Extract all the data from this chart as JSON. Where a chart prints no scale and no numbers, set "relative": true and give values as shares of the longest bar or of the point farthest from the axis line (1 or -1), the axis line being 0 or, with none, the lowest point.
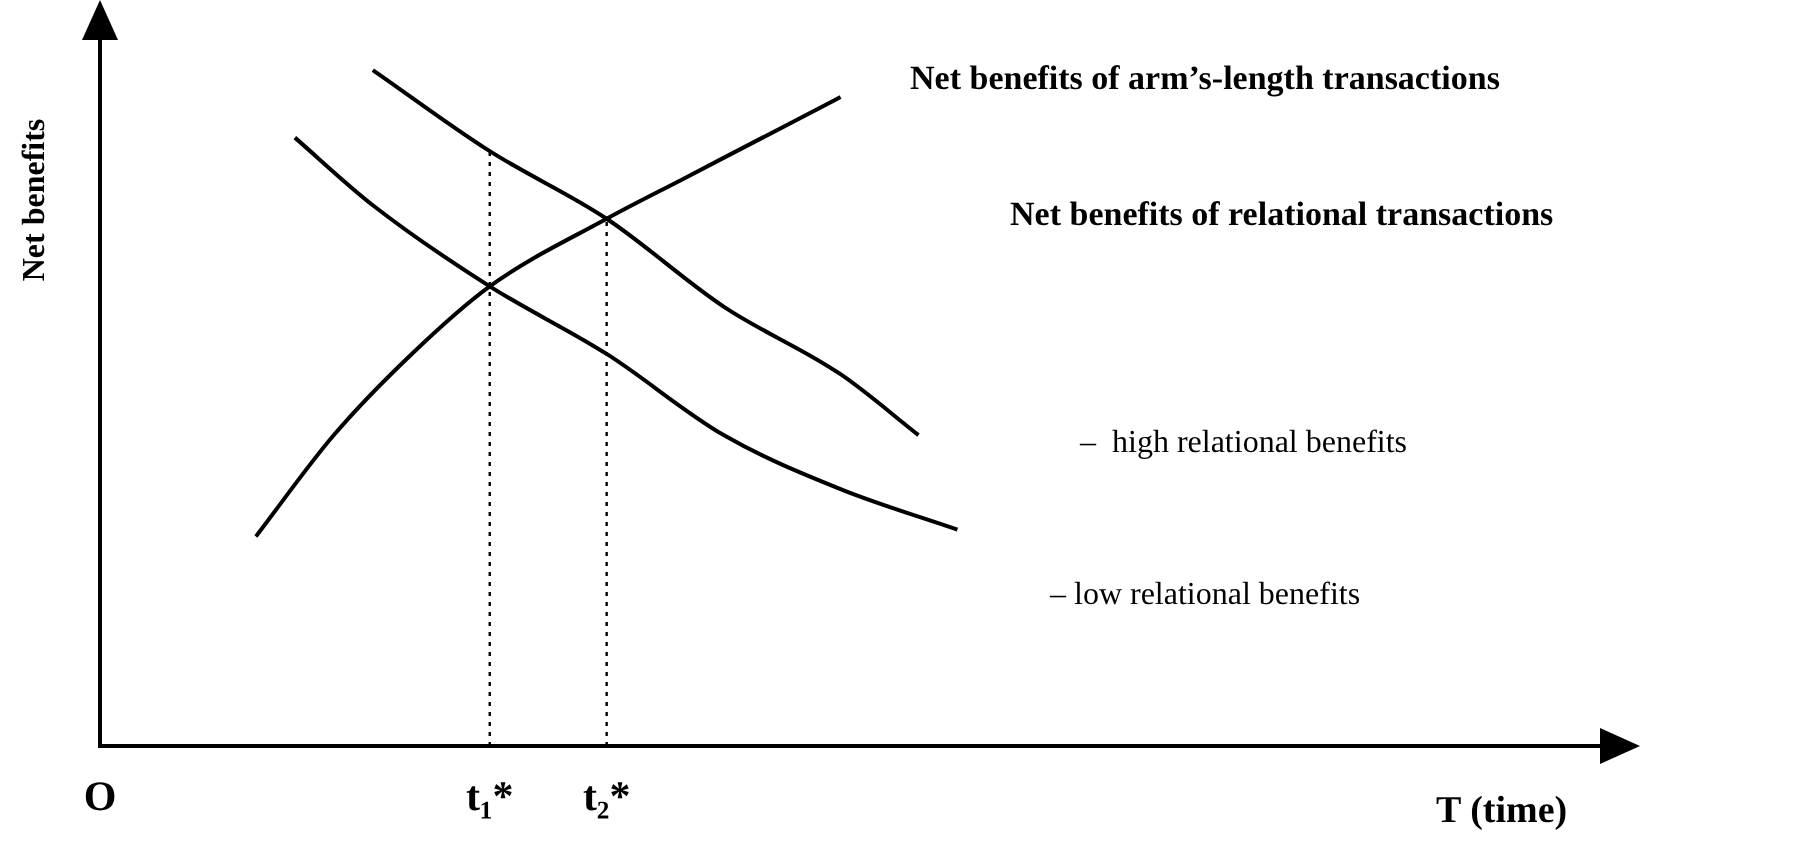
{
  "chart_data": {
    "type": "line",
    "relative": true,
    "ylabel": "Net benefits",
    "xlabel": "T (time)",
    "marker": "none",
    "categories": [
      "O",
      null,
      null,
      null,
      null,
      null,
      null,
      null,
      null,
      null,
      "t₁*",
      null,
      null,
      "t₂*",
      null,
      null,
      null,
      null,
      null,
      null,
      null,
      null,
      null,
      null,
      null,
      null,
      null,
      null,
      null,
      null,
      null,
      null,
      null,
      null,
      null,
      null,
      null,
      null,
      null,
      null
    ],
    "series": [
      {
        "name": "Net benefits of arm’s-length transactions",
        "color": "#000000",
        "values": [
          null,
          null,
          null,
          null,
          0.31,
          null,
          0.46,
          null,
          0.58,
          null,
          0.68,
          null,
          null,
          0.78,
          null,
          0.84,
          null,
          0.9,
          null,
          0.96,
          null,
          null,
          null,
          null,
          null,
          null,
          null,
          null,
          null,
          null,
          null,
          null,
          null,
          null,
          null,
          null,
          null,
          null,
          null,
          null
        ]
      },
      {
        "name": "–  high relational benefits",
        "color": "#000000",
        "values": [
          null,
          null,
          null,
          null,
          null,
          null,
          null,
          1.0,
          null,
          null,
          0.88,
          null,
          null,
          0.78,
          null,
          null,
          0.65,
          null,
          null,
          0.55,
          null,
          0.46,
          null,
          null,
          null,
          null,
          null,
          null,
          null,
          null,
          null,
          null,
          null,
          null,
          null,
          null,
          null,
          null,
          null,
          null
        ]
      },
      {
        "name": "– low relational benefits",
        "color": "#000000",
        "values": [
          null,
          null,
          null,
          null,
          null,
          0.9,
          null,
          0.8,
          null,
          null,
          0.68,
          null,
          null,
          0.58,
          null,
          null,
          0.46,
          null,
          null,
          0.38,
          null,
          null,
          0.32,
          null,
          null,
          null,
          null,
          null,
          null,
          null,
          null,
          null,
          null,
          null,
          null,
          null,
          null,
          null,
          null,
          null
        ]
      }
    ],
    "annotations": [
      "Net benefits of relational transactions"
    ],
    "ref_lines": [
      {
        "axis": "x",
        "value": "t₁*",
        "line_style": "dotted"
      },
      {
        "axis": "x",
        "value": "t₂*",
        "line_style": "dotted"
      }
    ]
  }
}
